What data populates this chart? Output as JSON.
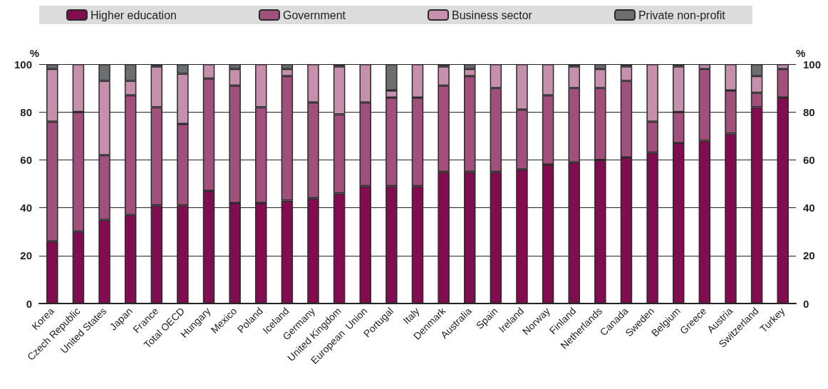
{
  "chart_data": {
    "type": "bar",
    "stacked": true,
    "ylabel": "%",
    "y2label": "%",
    "categories": [
      "Korea",
      "Czech Republic",
      "United States",
      "Japan",
      "France",
      "Total OECD",
      "Hungary",
      "Mexico",
      "Poland",
      "Iceland",
      "Germany",
      "United Kingdom",
      "European  Union",
      "Portugal",
      "Italy",
      "Denmark",
      "Australia",
      "Spain",
      "Ireland",
      "Norway",
      "Finland",
      "Netherlands",
      "Canada",
      "Sweden",
      "Belgium",
      "Greece",
      "Austria",
      "Switzerland",
      "Turkey"
    ],
    "series": [
      {
        "name": "Higher education",
        "color": "#820c50",
        "values": [
          26,
          30,
          35,
          37,
          41,
          41,
          47,
          42,
          42,
          43,
          44,
          46,
          49,
          49,
          49,
          55,
          55,
          55,
          56,
          58,
          59,
          60,
          61,
          63,
          67,
          68,
          71,
          82,
          86
        ]
      },
      {
        "name": "Government",
        "color": "#a0507a",
        "values": [
          50,
          50,
          27,
          50,
          41,
          34,
          47,
          49,
          40,
          52,
          40,
          33,
          35,
          37,
          37,
          36,
          40,
          35,
          25,
          29,
          31,
          30,
          32,
          13,
          13,
          30,
          18,
          6,
          12
        ]
      },
      {
        "name": "Business sector",
        "color": "#c690ad",
        "values": [
          22,
          20,
          31,
          6,
          17,
          21,
          6,
          7,
          18,
          3,
          16,
          20,
          16,
          3,
          14,
          8,
          3,
          10,
          19,
          13,
          9,
          8,
          6,
          24,
          19,
          2,
          11,
          7,
          2
        ]
      },
      {
        "name": "Private non-profit",
        "color": "#6d6e70",
        "values": [
          2,
          0,
          7,
          7,
          1,
          4,
          0,
          2,
          0,
          2,
          0,
          1,
          0,
          11,
          0,
          1,
          2,
          0,
          0,
          0,
          1,
          2,
          1,
          0,
          1,
          0,
          0,
          5,
          0
        ]
      }
    ],
    "ylim": [
      0,
      100
    ],
    "yticks": [
      0,
      20,
      40,
      60,
      80,
      100
    ],
    "y2lim": [
      0,
      100
    ],
    "y2ticks": [
      0,
      20,
      40,
      60,
      80,
      100
    ],
    "grid": "y",
    "legend": "top"
  }
}
